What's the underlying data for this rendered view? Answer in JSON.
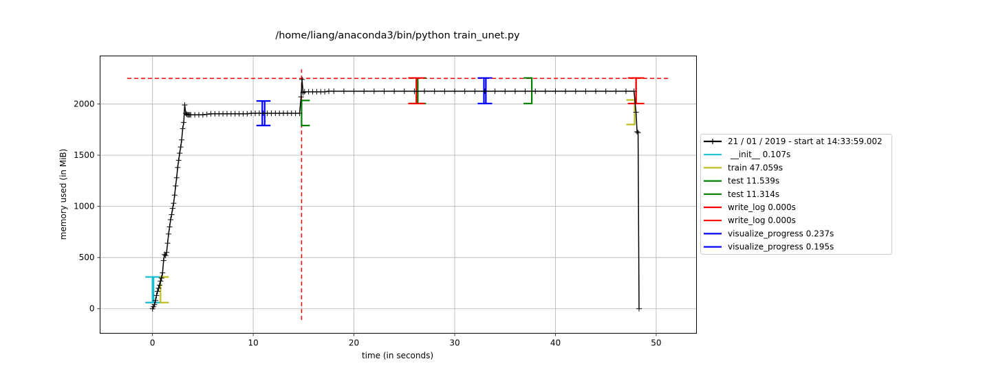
{
  "chart_data": {
    "type": "line",
    "title": "/home/liang/anaconda3/bin/python train_unet.py",
    "xlabel": "time (in seconds)",
    "ylabel": "memory used (in MiB)",
    "xlim": [
      -5.2,
      54.0
    ],
    "ylim": [
      -240,
      2470
    ],
    "xticks": [
      0,
      10,
      20,
      30,
      40,
      50
    ],
    "yticks": [
      0,
      500,
      1000,
      1500,
      2000
    ],
    "grid": true,
    "legend_position": "right, outside axes",
    "series": [
      {
        "name": "21 / 01 / 2019 - start at 14:33:59.002",
        "color": "#000000",
        "marker": "+",
        "x": [
          0.0,
          0.1,
          0.2,
          0.3,
          0.4,
          0.5,
          0.6,
          0.7,
          0.8,
          0.9,
          1.0,
          1.1,
          1.2,
          1.3,
          1.4,
          1.5,
          1.6,
          1.7,
          1.8,
          1.9,
          2.0,
          2.1,
          2.2,
          2.3,
          2.4,
          2.5,
          2.6,
          2.7,
          2.8,
          2.9,
          3.0,
          3.1,
          3.2,
          3.3,
          3.4,
          3.5,
          3.6,
          3.7,
          3.8,
          4.2,
          4.6,
          5.0,
          5.4,
          5.8,
          6.2,
          6.6,
          7.0,
          7.4,
          7.8,
          8.2,
          8.6,
          9.0,
          9.4,
          9.8,
          10.2,
          10.6,
          11.0,
          11.4,
          11.8,
          12.2,
          12.6,
          13.0,
          13.4,
          13.8,
          14.2,
          14.6,
          14.75,
          14.85,
          14.95,
          15.1,
          15.5,
          15.9,
          16.3,
          16.7,
          17.1,
          17.5,
          18.0,
          19.0,
          20.0,
          21.0,
          22.0,
          23.0,
          24.0,
          25.0,
          26.0,
          27.0,
          28.0,
          29.0,
          30.0,
          31.0,
          32.0,
          33.0,
          34.0,
          35.0,
          36.0,
          37.0,
          38.0,
          39.0,
          40.0,
          41.0,
          42.0,
          43.0,
          44.0,
          45.0,
          46.0,
          47.0,
          47.8,
          48.0,
          48.1,
          48.2,
          48.3
        ],
        "y": [
          0,
          20,
          40,
          80,
          130,
          170,
          200,
          230,
          270,
          300,
          350,
          470,
          530,
          520,
          550,
          640,
          730,
          800,
          870,
          920,
          980,
          1030,
          1110,
          1200,
          1280,
          1380,
          1450,
          1520,
          1580,
          1650,
          1760,
          1820,
          1990,
          1910,
          1900,
          1895,
          1895,
          1895,
          1895,
          1895,
          1895,
          1895,
          1900,
          1905,
          1905,
          1905,
          1905,
          1905,
          1905,
          1905,
          1905,
          1905,
          1905,
          1910,
          1910,
          1910,
          1910,
          1910,
          1910,
          1910,
          1910,
          1910,
          1910,
          1910,
          1910,
          1910,
          2070,
          2240,
          2110,
          2120,
          2120,
          2120,
          2120,
          2120,
          2120,
          2125,
          2125,
          2125,
          2125,
          2125,
          2125,
          2125,
          2125,
          2125,
          2125,
          2125,
          2125,
          2125,
          2125,
          2125,
          2125,
          2125,
          2125,
          2125,
          2125,
          2125,
          2125,
          2125,
          2125,
          2125,
          2125,
          2125,
          2125,
          2125,
          2125,
          2125,
          2125,
          1920,
          1730,
          1720,
          0
        ]
      }
    ],
    "bracket_series": [
      {
        "name": "__init__ 0.107s",
        "color": "#17becf",
        "brackets": [
          {
            "x_start": 0.0,
            "x_end": 0.107,
            "y_low": 60,
            "y_high": 310
          }
        ]
      },
      {
        "name": "train 47.059s",
        "color": "#bcbd22",
        "brackets": [
          {
            "x_start": 0.8,
            "x_end": 47.859,
            "y_low": 60,
            "y_high": 310,
            "end_y_low": 1800,
            "end_y_high": 2040
          }
        ]
      },
      {
        "name": "test 11.539s",
        "color": "#008000",
        "brackets": [
          {
            "x_start": 14.8,
            "x_end": 26.339,
            "y_low": 1790,
            "y_high": 2035,
            "end_y_low": 2005,
            "end_y_high": 2255
          }
        ]
      },
      {
        "name": "test 11.314s",
        "color": "#008000",
        "brackets": [
          {
            "x_start": 26.339,
            "x_end": 37.653,
            "y_low": 2005,
            "y_high": 2255
          }
        ]
      },
      {
        "name": "write_log 0.000s",
        "color": "#ff0000",
        "brackets": [
          {
            "x_start": 26.2,
            "x_end": 26.2,
            "y_low": 2005,
            "y_high": 2255
          }
        ]
      },
      {
        "name": "write_log 0.000s",
        "color": "#ff0000",
        "brackets": [
          {
            "x_start": 48.0,
            "x_end": 48.0,
            "y_low": 2005,
            "y_high": 2255
          }
        ]
      },
      {
        "name": "visualize_progress 0.237s",
        "color": "#0000ff",
        "brackets": [
          {
            "x_start": 10.9,
            "x_end": 11.137,
            "y_low": 1790,
            "y_high": 2030
          }
        ]
      },
      {
        "name": "visualize_progress 0.195s",
        "color": "#0000ff",
        "brackets": [
          {
            "x_start": 32.9,
            "x_end": 33.095,
            "y_low": 2005,
            "y_high": 2255
          }
        ]
      }
    ],
    "reference_lines": [
      {
        "orientation": "horizontal",
        "y": 2250,
        "x_from": -2.5,
        "x_to": 51.3,
        "color": "#ff0000",
        "style": "dashed"
      },
      {
        "orientation": "vertical",
        "x": 14.8,
        "y_from": -110,
        "y_to": 2340,
        "color": "#ff0000",
        "style": "dashed"
      }
    ],
    "legend": [
      {
        "label": "21 / 01 / 2019 - start at 14:33:59.002",
        "color": "#000000",
        "marker": "+"
      },
      {
        "label": " __init__ 0.107s",
        "color": "#17becf"
      },
      {
        "label": "train 47.059s",
        "color": "#bcbd22"
      },
      {
        "label": "test 11.539s",
        "color": "#008000"
      },
      {
        "label": "test 11.314s",
        "color": "#008000"
      },
      {
        "label": "write_log 0.000s",
        "color": "#ff0000"
      },
      {
        "label": "write_log 0.000s",
        "color": "#ff0000"
      },
      {
        "label": "visualize_progress 0.237s",
        "color": "#0000ff"
      },
      {
        "label": "visualize_progress 0.195s",
        "color": "#0000ff"
      }
    ]
  }
}
